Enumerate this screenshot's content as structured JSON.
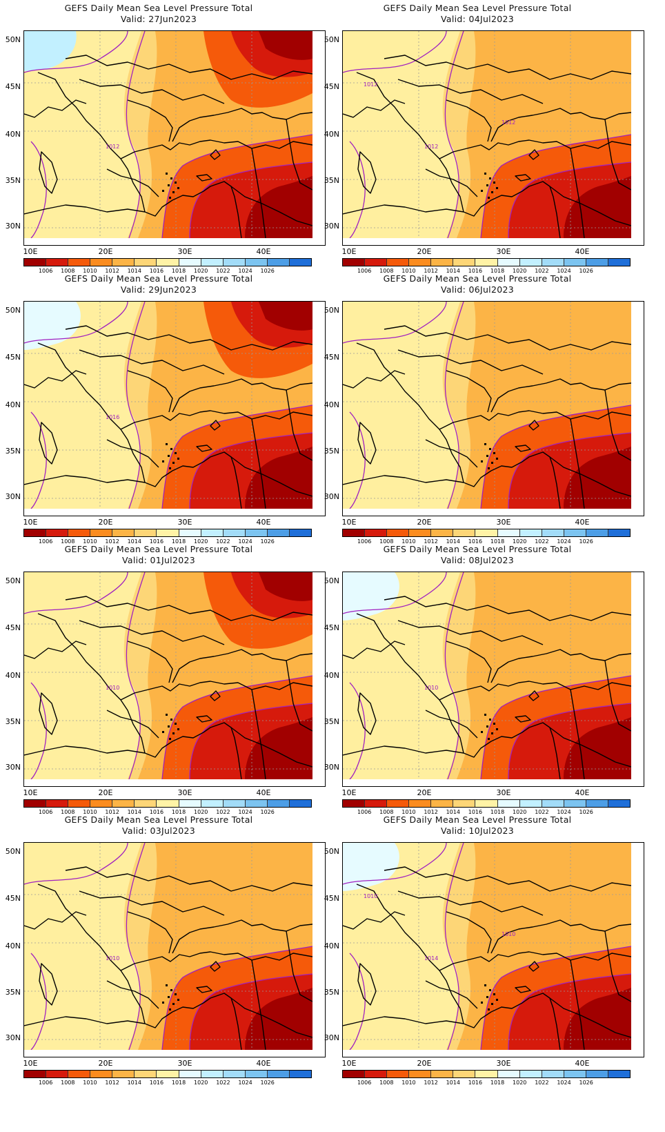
{
  "figure": {
    "title": "GEFS Daily Mean Sea Level Pressure Total",
    "panels": [
      {
        "valid": "Valid: 27Jun2023",
        "contour_labels": [
          "1012"
        ],
        "regime": "low-east-strong"
      },
      {
        "valid": "Valid: 04Jul2023",
        "contour_labels": [
          "1012",
          "1012",
          "1012"
        ],
        "regime": "low-southeast"
      },
      {
        "valid": "Valid: 29Jun2023",
        "contour_labels": [
          "1016"
        ],
        "regime": "low-east-high-northwest"
      },
      {
        "valid": "Valid: 06Jul2023",
        "contour_labels": [],
        "regime": "low-southeast"
      },
      {
        "valid": "Valid: 01Jul2023",
        "contour_labels": [
          "1010"
        ],
        "regime": "low-east-strong"
      },
      {
        "valid": "Valid: 08Jul2023",
        "contour_labels": [
          "1010"
        ],
        "regime": "low-southeast-high-northwest"
      },
      {
        "valid": "Valid: 03Jul2023",
        "contour_labels": [
          "1010"
        ],
        "regime": "low-southeast"
      },
      {
        "valid": "Valid: 10Jul2023",
        "contour_labels": [
          "1014",
          "1010",
          "1010"
        ],
        "regime": "low-southeast-high-northwest"
      }
    ],
    "lat_labels": [
      "50N",
      "45N",
      "40N",
      "35N",
      "30N"
    ],
    "lon_labels": [
      "10E",
      "20E",
      "30E",
      "40E"
    ],
    "colorbar": {
      "labels": [
        "1006",
        "1008",
        "1010",
        "1012",
        "1014",
        "1016",
        "1018",
        "1020",
        "1022",
        "1024",
        "1026"
      ],
      "colors": [
        "#a10000",
        "#d61a0c",
        "#f55a0a",
        "#fb8c1f",
        "#fcb446",
        "#fdd677",
        "#fff3a6",
        "#e6fbff",
        "#c2f0ff",
        "#a2dcf8",
        "#7cc4f0",
        "#4d9ee6",
        "#1f6fd9"
      ]
    },
    "contour_color": "#a020c0"
  }
}
